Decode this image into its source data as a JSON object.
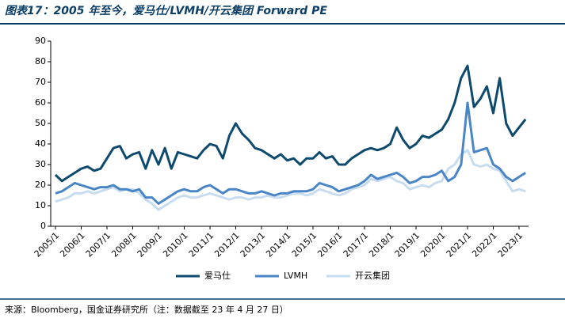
{
  "chart_data": {
    "type": "line",
    "title": "图表17：2005 年至今，爱马仕/LVMH/开云集团 Forward PE",
    "source": "来源：Bloomberg，国金证券研究所（注：数据截至 23 年 4 月 27 日）",
    "x": [
      "2005/1",
      "2005/4",
      "2005/7",
      "2005/10",
      "2006/1",
      "2006/4",
      "2006/7",
      "2006/10",
      "2007/1",
      "2007/4",
      "2007/7",
      "2007/10",
      "2008/1",
      "2008/4",
      "2008/7",
      "2008/10",
      "2009/1",
      "2009/4",
      "2009/7",
      "2009/10",
      "2010/1",
      "2010/4",
      "2010/7",
      "2010/10",
      "2011/1",
      "2011/4",
      "2011/7",
      "2011/10",
      "2012/1",
      "2012/4",
      "2012/7",
      "2012/10",
      "2013/1",
      "2013/4",
      "2013/7",
      "2013/10",
      "2014/1",
      "2014/4",
      "2014/7",
      "2014/10",
      "2015/1",
      "2015/4",
      "2015/7",
      "2015/10",
      "2016/1",
      "2016/4",
      "2016/7",
      "2016/10",
      "2017/1",
      "2017/4",
      "2017/7",
      "2017/10",
      "2018/1",
      "2018/4",
      "2018/7",
      "2018/10",
      "2019/1",
      "2019/4",
      "2019/7",
      "2019/10",
      "2020/1",
      "2020/4",
      "2020/7",
      "2020/10",
      "2021/1",
      "2021/4",
      "2021/7",
      "2021/10",
      "2022/1",
      "2022/4",
      "2022/7",
      "2022/10",
      "2023/1",
      "2023/4"
    ],
    "xticks": [
      "2005/1",
      "2006/1",
      "2007/1",
      "2008/1",
      "2009/1",
      "2010/1",
      "2011/1",
      "2012/1",
      "2013/1",
      "2014/1",
      "2015/1",
      "2016/1",
      "2017/1",
      "2018/1",
      "2019/1",
      "2020/1",
      "2021/1",
      "2022/1",
      "2023/1"
    ],
    "ylim": [
      0,
      90
    ],
    "yticks": [
      0,
      10,
      20,
      30,
      40,
      50,
      60,
      70,
      80,
      90
    ],
    "series": [
      {
        "name": "爱马仕",
        "color": "#0d4a6e",
        "values": [
          25,
          22,
          24,
          26,
          28,
          29,
          27,
          28,
          33,
          38,
          39,
          33,
          35,
          36,
          28,
          37,
          30,
          38,
          28,
          36,
          35,
          34,
          33,
          37,
          40,
          39,
          33,
          44,
          50,
          45,
          42,
          38,
          37,
          35,
          33,
          35,
          32,
          33,
          30,
          33,
          33,
          36,
          33,
          34,
          30,
          30,
          33,
          35,
          37,
          38,
          37,
          38,
          40,
          48,
          42,
          38,
          40,
          44,
          43,
          45,
          47,
          52,
          60,
          72,
          78,
          58,
          62,
          68,
          55,
          72,
          50,
          44,
          48,
          52
        ]
      },
      {
        "name": "LVMH",
        "color": "#4a86c5",
        "values": [
          16,
          17,
          19,
          21,
          20,
          19,
          18,
          19,
          19,
          20,
          18,
          18,
          17,
          18,
          14,
          14,
          11,
          13,
          15,
          17,
          18,
          17,
          17,
          19,
          20,
          18,
          16,
          18,
          18,
          17,
          16,
          16,
          17,
          16,
          15,
          16,
          16,
          17,
          17,
          17,
          18,
          21,
          20,
          19,
          17,
          18,
          19,
          20,
          22,
          25,
          23,
          24,
          25,
          26,
          24,
          21,
          22,
          24,
          24,
          25,
          27,
          22,
          24,
          30,
          60,
          36,
          37,
          38,
          30,
          28,
          24,
          22,
          24,
          26
        ]
      },
      {
        "name": "开云集团",
        "color": "#c8dcef",
        "values": [
          12,
          13,
          14,
          16,
          16,
          17,
          16,
          17,
          18,
          19,
          17,
          18,
          18,
          16,
          13,
          11,
          8,
          10,
          12,
          14,
          15,
          14,
          14,
          15,
          16,
          15,
          14,
          13,
          14,
          14,
          13,
          14,
          14,
          15,
          14,
          14,
          15,
          16,
          16,
          15,
          16,
          18,
          17,
          16,
          15,
          16,
          18,
          19,
          20,
          23,
          22,
          23,
          24,
          22,
          21,
          18,
          19,
          20,
          19,
          21,
          22,
          28,
          30,
          35,
          37,
          30,
          29,
          30,
          28,
          27,
          22,
          17,
          18,
          17
        ]
      }
    ]
  }
}
